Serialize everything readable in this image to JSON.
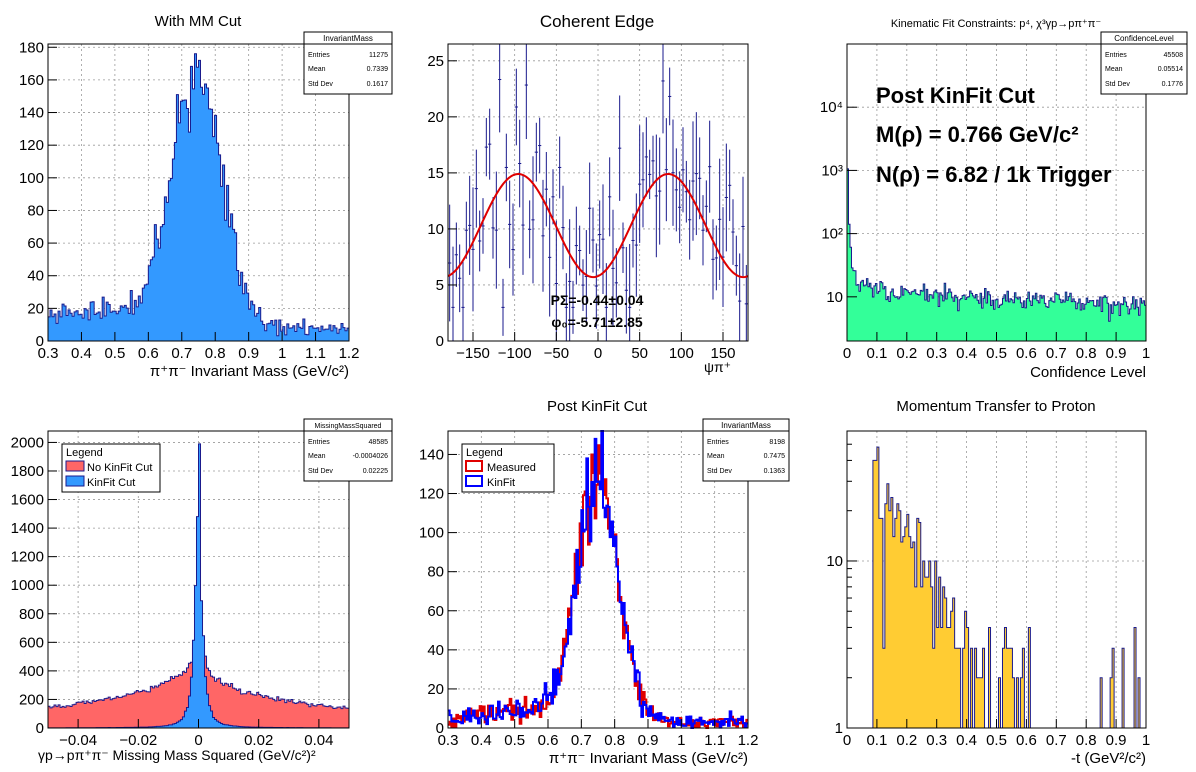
{
  "colors": {
    "frame": "#000000",
    "grid": "#9a9a9a",
    "navy": "#1a1a8c",
    "blue_fill": "#3399ff",
    "red_fill": "#ff6666",
    "green_fill": "#33ff99",
    "yellow_fill": "#ffcc33",
    "red_line": "#e00000",
    "blue_line": "#0000ff"
  },
  "chart_data": [
    {
      "id": "p1",
      "type": "bar",
      "title": "With MM Cut",
      "xlabel": "π⁺π⁻ Invariant Mass (GeV/c²)",
      "ylabel": "",
      "xlim": [
        0.3,
        1.2
      ],
      "ylim": [
        0,
        182
      ],
      "xticks": [
        "0.3",
        "0.4",
        "0.5",
        "0.6",
        "0.7",
        "0.8",
        "0.9",
        "1",
        "1.1",
        "1.2"
      ],
      "yticks": [
        "0",
        "20",
        "40",
        "60",
        "80",
        "100",
        "120",
        "140",
        "160",
        "180"
      ],
      "stats": {
        "name": "InvariantMass",
        "rows": [
          [
            "Entries",
            "11275"
          ],
          [
            "Mean",
            "0.7339"
          ],
          [
            "Std Dev",
            "0.1617"
          ]
        ]
      },
      "fill": "#3399ff",
      "line": "#1a1a8c",
      "grid": true,
      "peak": {
        "center": 0.745,
        "sigma": 0.075,
        "height": 148,
        "bg0": 8,
        "bg_slope": 2,
        "noise": 9
      }
    },
    {
      "id": "p2",
      "type": "scatter",
      "title": "Coherent Edge",
      "xlabel": "ψπ⁺",
      "ylabel": "",
      "xlim": [
        -180,
        180
      ],
      "ylim": [
        0,
        26.5
      ],
      "xticks": [
        "−150",
        "−100",
        "−50",
        "0",
        "50",
        "100",
        "150"
      ],
      "yticks": [
        "0",
        "5",
        "10",
        "15",
        "20",
        "25"
      ],
      "fit": {
        "mean": 10.3,
        "amp": 4.6,
        "phase_deg": -5.71
      },
      "annotations": [
        "PΣ=-0.44±0.04",
        "φ₀=-5.71±2.85"
      ],
      "grid": true
    },
    {
      "id": "p3",
      "type": "bar",
      "title": "Kinematic Fit Constraints: p⁴, χ³γp→pπ⁺π⁻",
      "xlabel": "Confidence Level",
      "ylabel": "",
      "log_y": true,
      "xlim": [
        0,
        1
      ],
      "ylim": [
        2,
        100000
      ],
      "xticks": [
        "0",
        "0.1",
        "0.2",
        "0.3",
        "0.4",
        "0.5",
        "0.6",
        "0.7",
        "0.8",
        "0.9",
        "1"
      ],
      "yticks": [
        "10",
        "10²",
        "10³",
        "10⁴"
      ],
      "stats": {
        "name": "ConfidenceLevel",
        "rows": [
          [
            "Entries",
            "45508"
          ],
          [
            "Mean",
            "0.05514"
          ],
          [
            "Std Dev",
            "0.1776"
          ]
        ]
      },
      "annotations": [
        "Post KinFit Cut",
        "M(ρ) = 0.766 GeV/c²",
        "N(ρ) = 6.82 / 1k Trigger"
      ],
      "fill": "#33ff99",
      "line": "#1a1a8c",
      "grid": true
    },
    {
      "id": "p4",
      "type": "bar",
      "title": "",
      "xlabel": "γp→pπ⁺π⁻ Missing Mass Squared (GeV/c²)²",
      "ylabel": "",
      "xlim": [
        -0.05,
        0.05
      ],
      "ylim": [
        0,
        2080
      ],
      "xticks": [
        "−0.04",
        "−0.02",
        "0",
        "0.02",
        "0.04"
      ],
      "yticks": [
        "0",
        "200",
        "400",
        "600",
        "800",
        "1000",
        "1200",
        "1400",
        "1600",
        "1800",
        "2000"
      ],
      "stats": {
        "name": "MissingMassSquared",
        "rows": [
          [
            "Entries",
            "48585"
          ],
          [
            "Mean",
            "-0.0004026"
          ],
          [
            "Std Dev",
            "0.02225"
          ]
        ]
      },
      "legend": {
        "title": "Legend",
        "items": [
          {
            "label": "No KinFit Cut",
            "color": "#ff6666"
          },
          {
            "label": "KinFit Cut",
            "color": "#3399ff"
          }
        ]
      },
      "grid": true
    },
    {
      "id": "p5",
      "type": "line",
      "title": "Post KinFit Cut",
      "xlabel": "π⁺π⁻ Invariant Mass (GeV/c²)",
      "ylabel": "",
      "xlim": [
        0.3,
        1.2
      ],
      "ylim": [
        0,
        152
      ],
      "xticks": [
        "0.3",
        "0.4",
        "0.5",
        "0.6",
        "0.7",
        "0.8",
        "0.9",
        "1",
        "1.1",
        "1.2"
      ],
      "yticks": [
        "0",
        "20",
        "40",
        "60",
        "80",
        "100",
        "120",
        "140"
      ],
      "stats": {
        "name": "InvariantMass",
        "rows": [
          [
            "Entries",
            "8198"
          ],
          [
            "Mean",
            "0.7475"
          ],
          [
            "Std Dev",
            "0.1363"
          ]
        ]
      },
      "legend": {
        "title": "Legend",
        "items": [
          {
            "label": "Measured",
            "color": "#e00000"
          },
          {
            "label": "KinFit",
            "color": "#0000ff"
          }
        ]
      },
      "grid": true
    },
    {
      "id": "p6",
      "type": "bar",
      "title": "Momentum Transfer to Proton",
      "xlabel": "-t (GeV²/c²)",
      "ylabel": "",
      "log_y": true,
      "xlim": [
        0,
        1
      ],
      "ylim": [
        1,
        60
      ],
      "xticks": [
        "0",
        "0.1",
        "0.2",
        "0.3",
        "0.4",
        "0.5",
        "0.6",
        "0.7",
        "0.8",
        "0.9",
        "1"
      ],
      "yticks": [
        "1",
        "10"
      ],
      "fill": "#ffcc33",
      "line": "#1a1a8c",
      "grid": true
    }
  ]
}
